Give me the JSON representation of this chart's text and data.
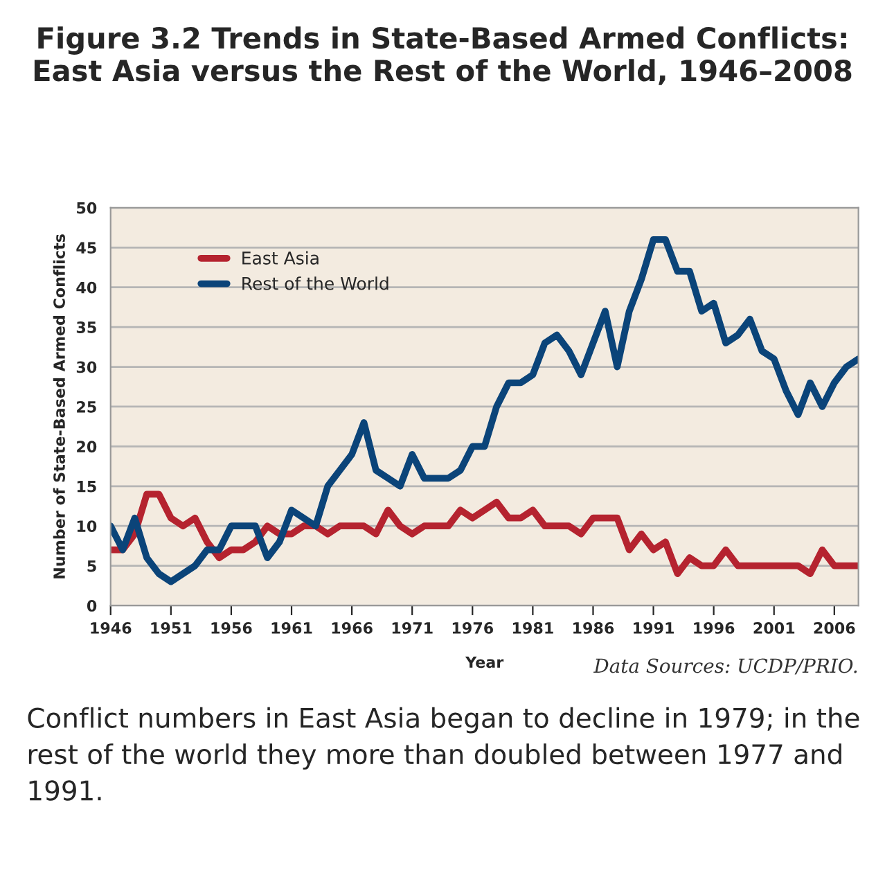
{
  "chart_data": {
    "type": "line",
    "title": "Figure 3.2 Trends in State-Based Armed Conflicts: East Asia versus the Rest of the World, 1946–2008",
    "xlabel": "Year",
    "ylabel": "Number of State-Based Armed Conflicts",
    "annotations": [
      "Data Sources: UCDP/PRIO.",
      "Conflict numbers in East Asia began to decline in 1979; in the rest of the world they more than doubled between 1977 and 1991."
    ],
    "x": [
      1946,
      1947,
      1948,
      1949,
      1950,
      1951,
      1952,
      1953,
      1954,
      1955,
      1956,
      1957,
      1958,
      1959,
      1960,
      1961,
      1962,
      1963,
      1964,
      1965,
      1966,
      1967,
      1968,
      1969,
      1970,
      1971,
      1972,
      1973,
      1974,
      1975,
      1976,
      1977,
      1978,
      1979,
      1980,
      1981,
      1982,
      1983,
      1984,
      1985,
      1986,
      1987,
      1988,
      1989,
      1990,
      1991,
      1992,
      1993,
      1994,
      1995,
      1996,
      1997,
      1998,
      1999,
      2000,
      2001,
      2002,
      2003,
      2004,
      2005,
      2006,
      2007,
      2008
    ],
    "series": [
      {
        "name": "East Asia",
        "color": "#b5232f",
        "values": [
          7,
          7,
          9,
          14,
          14,
          11,
          10,
          11,
          8,
          6,
          7,
          7,
          8,
          10,
          9,
          9,
          10,
          10,
          9,
          10,
          10,
          10,
          9,
          12,
          10,
          9,
          10,
          10,
          10,
          12,
          11,
          12,
          13,
          11,
          11,
          12,
          10,
          10,
          10,
          9,
          11,
          11,
          11,
          7,
          9,
          7,
          8,
          4,
          6,
          5,
          5,
          7,
          5,
          5,
          5,
          5,
          5,
          5,
          4,
          7,
          5,
          5,
          5
        ]
      },
      {
        "name": "Rest of the World",
        "color": "#0b4479",
        "values": [
          10,
          7,
          11,
          6,
          4,
          3,
          4,
          5,
          7,
          7,
          10,
          10,
          10,
          6,
          8,
          12,
          11,
          10,
          15,
          17,
          19,
          23,
          17,
          16,
          15,
          19,
          16,
          16,
          16,
          17,
          20,
          20,
          25,
          28,
          28,
          29,
          33,
          34,
          32,
          29,
          33,
          37,
          30,
          37,
          41,
          46,
          46,
          42,
          42,
          37,
          38,
          33,
          34,
          36,
          32,
          31,
          27,
          24,
          28,
          25,
          28,
          30,
          31
        ]
      }
    ],
    "xlim": [
      1946,
      2008
    ],
    "xticks": [
      1946,
      1951,
      1956,
      1961,
      1966,
      1971,
      1976,
      1981,
      1986,
      1991,
      1996,
      2001,
      2006
    ],
    "ylim": [
      0,
      50
    ],
    "yticks": [
      0,
      5,
      10,
      15,
      20,
      25,
      30,
      35,
      40,
      45,
      50
    ],
    "grid": "y",
    "legend": "top left",
    "line_style": "solid",
    "marker": "none"
  }
}
